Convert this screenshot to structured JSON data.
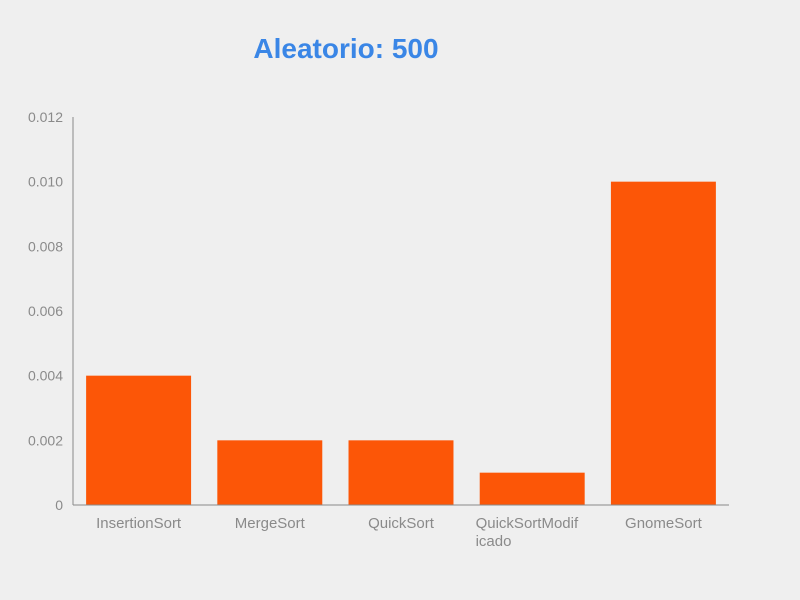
{
  "colors": {
    "background": "#efefef",
    "title": "#3a86e6",
    "bar": "#fc5607",
    "axis": "#8a8a8a"
  },
  "chart_data": {
    "type": "bar",
    "title": "Aleatorio: 500",
    "xlabel": "",
    "ylabel": "",
    "categories": [
      "InsertionSort",
      "MergeSort",
      "QuickSort",
      "QuickSortModificado",
      "GnomeSort"
    ],
    "category_label_lines": [
      [
        "InsertionSort"
      ],
      [
        "MergeSort"
      ],
      [
        "QuickSort"
      ],
      [
        "QuickSortModif",
        "icado"
      ],
      [
        "GnomeSort"
      ]
    ],
    "values": [
      0.004,
      0.002,
      0.002,
      0.001,
      0.01
    ],
    "ylim": [
      0,
      0.012
    ],
    "yticks": [
      0,
      0.002,
      0.004,
      0.006,
      0.008,
      0.01,
      0.012
    ],
    "ytick_labels": [
      "0",
      "0.002",
      "0.004",
      "0.006",
      "0.008",
      "0.010",
      "0.012"
    ],
    "grid": false,
    "legend": "none"
  }
}
